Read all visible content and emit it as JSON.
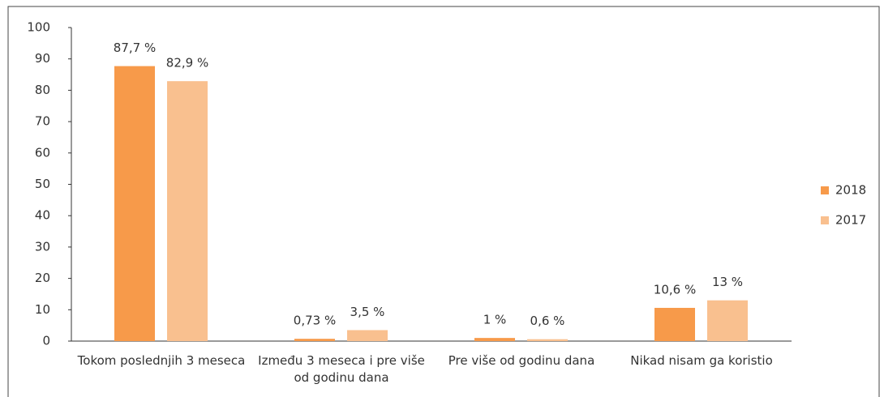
{
  "chart_data": {
    "type": "bar",
    "categories": [
      "Tokom poslednjih 3 meseca",
      "Između 3 meseca i pre više od godinu dana",
      "Pre više od godinu dana",
      "Nikad nisam ga koristio"
    ],
    "series": [
      {
        "name": "2018",
        "color": "#f79a4a",
        "values": [
          87.7,
          0.73,
          1,
          10.6
        ],
        "value_labels": [
          "87,7 %",
          "0,73 %",
          "1 %",
          "10,6 %"
        ]
      },
      {
        "name": "2017",
        "color": "#f9c08f",
        "values": [
          82.9,
          3.5,
          0.6,
          13
        ],
        "value_labels": [
          "82,9 %",
          "3,5 %",
          "0,6 %",
          "13 %"
        ]
      }
    ],
    "ylim": [
      0,
      100
    ],
    "yticks": [
      0,
      10,
      20,
      30,
      40,
      50,
      60,
      70,
      80,
      90,
      100
    ],
    "legend": "right"
  }
}
